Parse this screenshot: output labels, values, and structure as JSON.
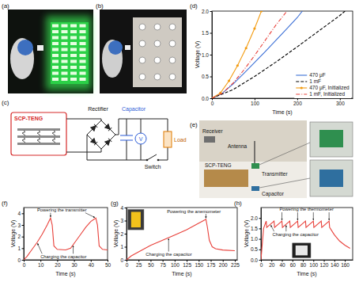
{
  "chart_data": [
    {
      "type": "line",
      "panel": "(d)",
      "x_label": "Time (s)",
      "y_label": "Voltage (V)",
      "xlim": [
        0,
        330
      ],
      "xticks": [
        0,
        100,
        200,
        300
      ],
      "ylim": [
        0,
        2
      ],
      "yticks": [
        {
          "value": 0,
          "label": "0.0"
        },
        0.5,
        {
          "value": 1,
          "label": "1.0"
        },
        1.5,
        {
          "value": 2,
          "label": "2.0"
        }
      ],
      "legend": "lower right",
      "series": [
        {
          "name": "470 μF",
          "color": "#3b6fd6",
          "line_style": "solid",
          "x": [
            0,
            25,
            50,
            75,
            100,
            125,
            150,
            175,
            200,
            212
          ],
          "values": [
            0,
            0.12,
            0.33,
            0.57,
            0.82,
            1.07,
            1.33,
            1.59,
            1.85,
            2.0
          ]
        },
        {
          "name": "1 mF",
          "color": "#000000",
          "line_style": "dashed",
          "x": [
            0,
            50,
            100,
            150,
            200,
            250,
            300,
            312
          ],
          "values": [
            0,
            0.2,
            0.5,
            0.83,
            1.18,
            1.54,
            1.9,
            2.0
          ]
        },
        {
          "name": "470 μF, Initialized",
          "color": "#f39c12",
          "line_style": "solid",
          "marker": "circle",
          "x": [
            0,
            20,
            40,
            60,
            80,
            100,
            116
          ],
          "values": [
            0,
            0.12,
            0.4,
            0.75,
            1.15,
            1.6,
            2.0
          ]
        },
        {
          "name": "1 mF, Initialized",
          "color": "#e8403a",
          "line_style": "dashdot",
          "x": [
            0,
            25,
            50,
            75,
            100,
            125,
            150,
            176
          ],
          "values": [
            0,
            0.12,
            0.35,
            0.65,
            0.98,
            1.33,
            1.68,
            2.0
          ]
        }
      ]
    },
    {
      "type": "line",
      "panel": "(f)",
      "x_label": "Time (s)",
      "y_label": "Voltage (V)",
      "xlim": [
        0,
        50
      ],
      "xticks": [
        0,
        10,
        20,
        30,
        40,
        50
      ],
      "ylim": [
        0,
        4.5
      ],
      "yticks": [
        0,
        1,
        2,
        3,
        4
      ],
      "annotations": [
        "Powering the transmitter",
        "Charging the capacitor"
      ],
      "series": [
        {
          "color": "#e8403a",
          "x": [
            0,
            2,
            5,
            8,
            11,
            14,
            16,
            17,
            18,
            20,
            25,
            28,
            31,
            34,
            37,
            40,
            43,
            44,
            45,
            47,
            50
          ],
          "values": [
            0,
            0.3,
            0.9,
            1.5,
            2.2,
            3.0,
            3.6,
            3.0,
            1.2,
            0.9,
            0.85,
            1.0,
            1.6,
            2.2,
            2.8,
            3.3,
            3.6,
            3.0,
            1.2,
            0.9,
            0.85
          ]
        }
      ]
    },
    {
      "type": "line",
      "panel": "(g)",
      "x_label": "Time (s)",
      "y_label": "Voltage (V)",
      "xlim": [
        0,
        230
      ],
      "xticks": [
        0,
        25,
        50,
        75,
        100,
        125,
        150,
        175,
        200,
        225
      ],
      "ylim": [
        0,
        4
      ],
      "yticks": [
        0,
        1,
        2,
        3,
        4
      ],
      "annotations": [
        "Powering the anemometer",
        "Charging the capacitor"
      ],
      "series": [
        {
          "color": "#e8403a",
          "x": [
            0,
            10,
            25,
            50,
            75,
            100,
            125,
            150,
            160,
            165,
            168,
            172,
            178,
            185,
            200,
            225
          ],
          "values": [
            0,
            0.3,
            0.6,
            1.1,
            1.5,
            1.9,
            2.3,
            2.8,
            3.0,
            3.1,
            2.5,
            1.5,
            1.0,
            0.85,
            0.75,
            0.7
          ]
        }
      ]
    },
    {
      "type": "line",
      "panel": "(h)",
      "x_label": "Time (s)",
      "y_label": "Voltage (V)",
      "xlim": [
        0,
        175
      ],
      "xticks": [
        0,
        20,
        40,
        60,
        80,
        100,
        120,
        140,
        160
      ],
      "ylim": [
        0,
        2.5
      ],
      "yticks": [
        {
          "value": 0,
          "label": "0.0"
        },
        0.5,
        {
          "value": 1,
          "label": "1.0"
        },
        1.5,
        {
          "value": 2,
          "label": "2.0"
        }
      ],
      "annotations": [
        "Powering the thermometer",
        "Charging the capacitor"
      ],
      "series": [
        {
          "color": "#e8403a",
          "x": [
            0,
            5,
            10,
            11,
            25,
            26,
            40,
            41,
            55,
            56,
            70,
            71,
            85,
            86,
            100,
            101,
            115,
            116,
            130,
            131,
            140,
            150,
            160,
            170
          ],
          "values": [
            0,
            1.5,
            1.85,
            1.55,
            1.85,
            1.55,
            1.85,
            1.55,
            1.85,
            1.55,
            1.85,
            1.55,
            1.85,
            1.55,
            1.85,
            1.55,
            1.85,
            1.55,
            1.85,
            1.55,
            1.2,
            0.9,
            0.7,
            0.55
          ]
        }
      ]
    }
  ],
  "panels": {
    "a": {
      "label": "(a)"
    },
    "b": {
      "label": "(b)"
    },
    "c": {
      "label": "(c)",
      "generator": "SCP-TENG",
      "rectifier": "Rectifier",
      "capacitor": "Capacitor",
      "meter": "V",
      "load": "Load",
      "switch": "Switch"
    },
    "e": {
      "label": "(e)",
      "receiver": "Receiver",
      "antenna": "Antenna",
      "generator": "SCP-TENG",
      "transmitter": "Transmitter",
      "capacitor": "Capacitor"
    }
  }
}
